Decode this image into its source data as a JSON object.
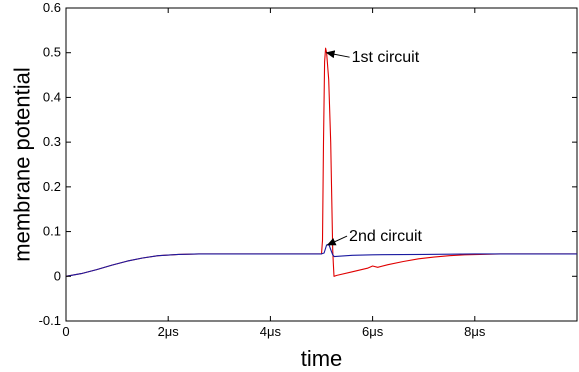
{
  "chart_data": {
    "type": "line",
    "xlabel": "time",
    "ylabel": "membrane potential",
    "xlim": [
      0,
      10
    ],
    "ylim": [
      -0.1,
      0.6
    ],
    "grid": false,
    "legend": "none",
    "x_ticks": [
      {
        "value": 0,
        "label": "0"
      },
      {
        "value": 2,
        "label": "2μs"
      },
      {
        "value": 4,
        "label": "4μs"
      },
      {
        "value": 6,
        "label": "6μs"
      },
      {
        "value": 8,
        "label": "8μs"
      }
    ],
    "y_ticks": [
      {
        "value": -0.1,
        "label": "-0.1"
      },
      {
        "value": 0,
        "label": "0"
      },
      {
        "value": 0.1,
        "label": "0.1"
      },
      {
        "value": 0.2,
        "label": "0.2"
      },
      {
        "value": 0.3,
        "label": "0.3"
      },
      {
        "value": 0.4,
        "label": "0.4"
      },
      {
        "value": 0.5,
        "label": "0.5"
      },
      {
        "value": 0.6,
        "label": "0.6"
      }
    ],
    "series": [
      {
        "name": "1st circuit",
        "color": "#e00000",
        "x": [
          0,
          0.3,
          0.6,
          0.9,
          1.2,
          1.5,
          1.8,
          2.2,
          2.6,
          3,
          4,
          5,
          5.02,
          5.04,
          5.06,
          5.08,
          5.1,
          5.14,
          5.18,
          5.22,
          5.23,
          5.245,
          5.3,
          5.6,
          5.9,
          6.0,
          6.1,
          6.3,
          6.6,
          6.9,
          7.2,
          7.5,
          7.8,
          8.1,
          8.5,
          9,
          10
        ],
        "y": [
          0,
          0.006,
          0.015,
          0.025,
          0.034,
          0.041,
          0.046,
          0.049,
          0.05,
          0.05,
          0.05,
          0.05,
          0.08,
          0.3,
          0.48,
          0.51,
          0.5,
          0.44,
          0.3,
          0.06,
          0.03,
          0.0,
          0.002,
          0.01,
          0.018,
          0.023,
          0.02,
          0.026,
          0.033,
          0.039,
          0.043,
          0.046,
          0.048,
          0.049,
          0.05,
          0.05,
          0.05
        ]
      },
      {
        "name": "2nd circuit",
        "color": "#1a1aa0",
        "x": [
          0,
          0.3,
          0.6,
          0.9,
          1.2,
          1.5,
          1.8,
          2.2,
          2.6,
          3,
          4,
          5,
          5.05,
          5.1,
          5.14,
          5.18,
          5.22,
          5.25,
          5.35,
          5.6,
          6,
          7,
          8,
          9,
          10
        ],
        "y": [
          0,
          0.006,
          0.015,
          0.025,
          0.034,
          0.041,
          0.046,
          0.049,
          0.05,
          0.05,
          0.05,
          0.05,
          0.052,
          0.07,
          0.072,
          0.06,
          0.048,
          0.044,
          0.045,
          0.047,
          0.048,
          0.049,
          0.05,
          0.05,
          0.05
        ]
      }
    ],
    "annotations": [
      {
        "text": "1st circuit",
        "from": [
          5.55,
          0.49
        ],
        "to": [
          5.1,
          0.5
        ]
      },
      {
        "text": "2nd circuit",
        "from": [
          5.5,
          0.09
        ],
        "to": [
          5.12,
          0.07
        ]
      }
    ]
  }
}
